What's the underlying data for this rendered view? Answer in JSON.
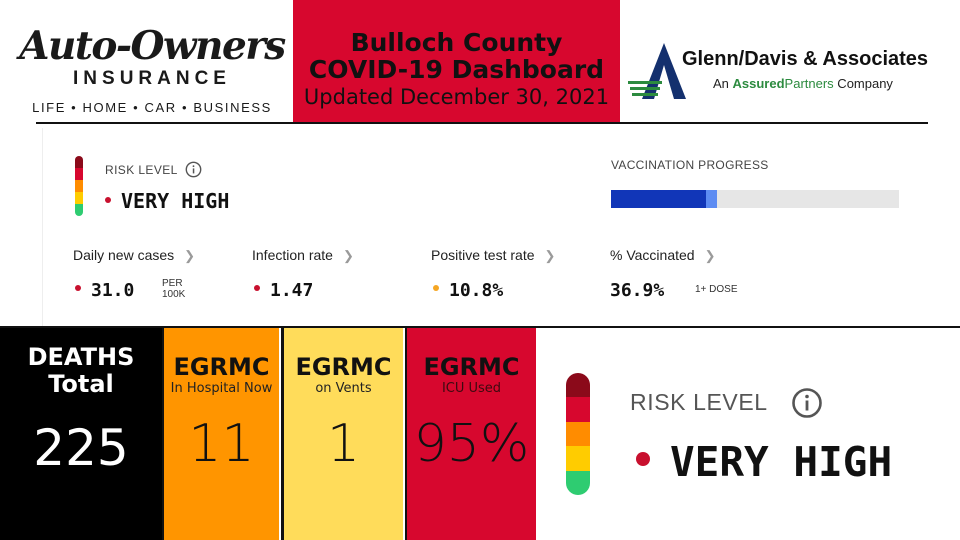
{
  "header": {
    "sponsor_left": {
      "name": "Auto-Owners",
      "subtitle": "INSURANCE",
      "tagline": "LIFE • HOME • CAR • BUSINESS"
    },
    "title_line1": "Bulloch County",
    "title_line2": "COVID-19 Dashboard",
    "updated": "Updated December 30, 2021",
    "sponsor_right": {
      "name": "Glenn/Davis & Associates",
      "sub_prefix": "An ",
      "sub_brand1": "Assured",
      "sub_brand2": "Partners",
      "sub_suffix": " Company"
    }
  },
  "risk": {
    "label": "RISK LEVEL",
    "value": "VERY HIGH",
    "level_colors": [
      "#8b0a1a",
      "#d7072e",
      "#ff8c00",
      "#ffcc00",
      "#2ecc71"
    ],
    "dot_color": "#c8102e"
  },
  "vaccination": {
    "label": "VACCINATION PROGRESS",
    "fully_fraction": 0.33,
    "one_dose_fraction": 0.369,
    "color_full": "#1136b8",
    "color_partial": "#5d8cf2"
  },
  "metrics": [
    {
      "label": "Daily new cases",
      "value": "31.0",
      "unit_line1": "PER",
      "unit_line2": "100K",
      "dot_color": "#c8102e"
    },
    {
      "label": "Infection rate",
      "value": "1.47",
      "dot_color": "#c8102e"
    },
    {
      "label": "Positive test rate",
      "value": "10.8%",
      "dot_color": "#f5a623"
    },
    {
      "label": "% Vaccinated",
      "value": "36.9%",
      "unit_line1": "1+ DOSE"
    }
  ],
  "panels": {
    "deaths": {
      "title_line1": "DEATHS",
      "title_line2": "Total",
      "value": "225"
    },
    "hospital": {
      "title": "EGRMC",
      "subtitle": "In Hospital Now",
      "value": "11"
    },
    "vents": {
      "title": "EGRMC",
      "subtitle": "on Vents",
      "value": "1"
    },
    "icu": {
      "title": "EGRMC",
      "subtitle": "ICU Used",
      "value": "95%"
    }
  }
}
